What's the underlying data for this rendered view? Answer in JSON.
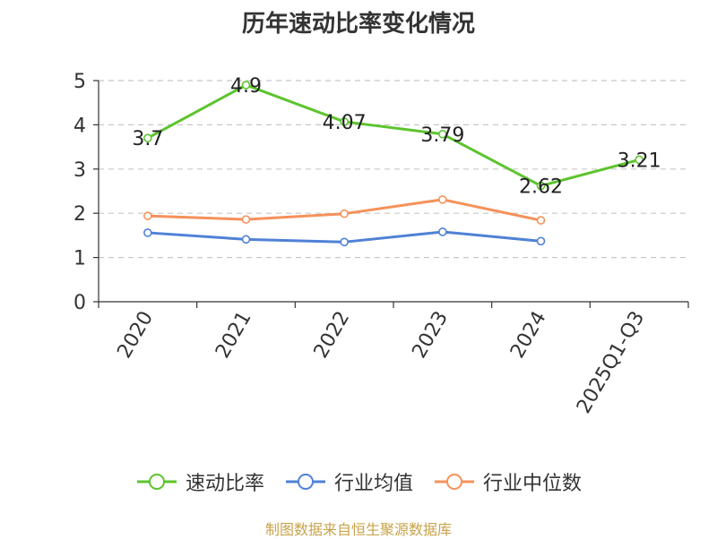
{
  "chart_data": {
    "type": "line",
    "title": "历年速动比率变化情况",
    "categories": [
      "2020",
      "2021",
      "2022",
      "2023",
      "2024",
      "2025Q1-Q3"
    ],
    "ylim": [
      0,
      5
    ],
    "yticks": [
      0,
      1,
      2,
      3,
      4,
      5
    ],
    "grid": true,
    "legend_position": "bottom",
    "series": [
      {
        "name": "速动比率",
        "color": "#5cc42d",
        "values": [
          3.7,
          4.9,
          4.07,
          3.79,
          2.62,
          3.21
        ],
        "labels": [
          "3.7",
          "4.9",
          "4.07",
          "3.79",
          "2.62",
          "3.21"
        ]
      },
      {
        "name": "行业均值",
        "color": "#4f81d6",
        "values": [
          1.56,
          1.41,
          1.35,
          1.58,
          1.37,
          null
        ]
      },
      {
        "name": "行业中位数",
        "color": "#f5915a",
        "values": [
          1.94,
          1.86,
          1.99,
          2.31,
          1.84,
          null
        ]
      }
    ]
  },
  "source": "制图数据来自恒生聚源数据库"
}
